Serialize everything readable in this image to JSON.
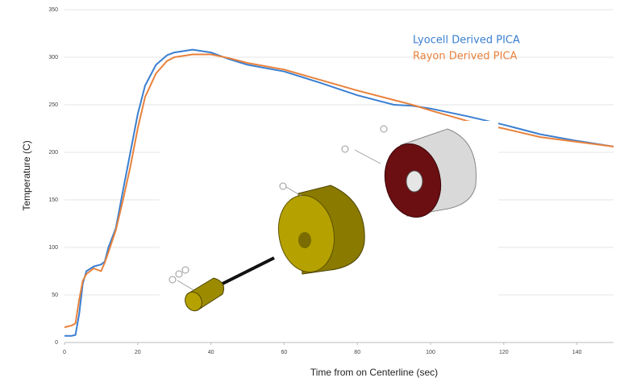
{
  "chart_data": {
    "type": "line",
    "x_label": "Time from on Centerline (sec)",
    "y_label": "Temperature (C)",
    "x": [
      0,
      2,
      3,
      4,
      5,
      6,
      8,
      10,
      11,
      12,
      14,
      16,
      18,
      20,
      22,
      25,
      28,
      30,
      35,
      40,
      45,
      50,
      60,
      70,
      80,
      90,
      95,
      100,
      110,
      120,
      130,
      140,
      150
    ],
    "series": [
      {
        "name": "Lyocell Derived PICA",
        "color": "#3a7fd0",
        "values": [
          7,
          7,
          8,
          30,
          62,
          75,
          80,
          82,
          85,
          100,
          120,
          160,
          200,
          240,
          270,
          292,
          302,
          305,
          308,
          305,
          298,
          292,
          285,
          273,
          260,
          250,
          249,
          246,
          238,
          229,
          219,
          212,
          206
        ]
      },
      {
        "name": "Rayon Derived PICA",
        "color": "#e8823c",
        "values": [
          16,
          18,
          20,
          45,
          65,
          72,
          78,
          75,
          84,
          95,
          118,
          150,
          185,
          225,
          258,
          283,
          296,
          300,
          303,
          303,
          299,
          294,
          287,
          276,
          265,
          255,
          250,
          244,
          233,
          225,
          216,
          211,
          206
        ]
      }
    ],
    "xlim": [
      0,
      150
    ],
    "ylim": [
      0,
      350
    ],
    "xticks": [
      0,
      20,
      40,
      60,
      80,
      100,
      120,
      140
    ],
    "yticks": [
      0,
      50,
      100,
      150,
      200,
      250,
      300,
      350
    ],
    "grid": true
  }
}
